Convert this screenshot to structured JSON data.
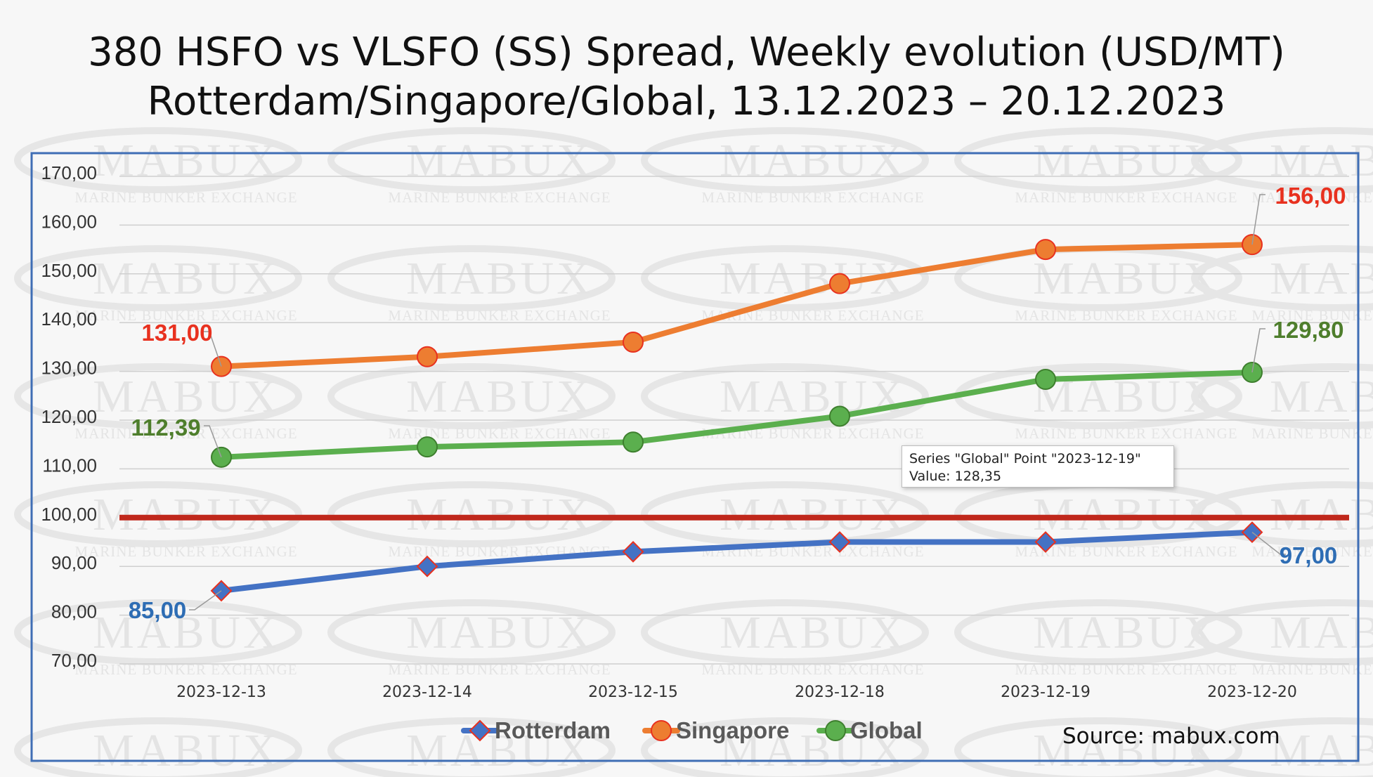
{
  "title_line1": "380 HSFO vs VLSFO (SS) Spread, Weekly evolution (USD/MT)",
  "title_line2": "Rotterdam/Singapore/Global, 13.12.2023 – 20.12.2023",
  "watermark": {
    "main": "MABUX",
    "sub": "MARINE BUNKER EXCHANGE"
  },
  "source": "Source: mabux.com",
  "tooltip": {
    "line1": "Series \"Global\" Point \"2023-12-19\"",
    "line2": "Value: 128,35"
  },
  "colors": {
    "rotterdam": "#4472C4",
    "singapore": "#ED7D31",
    "global": "#5BAF4E",
    "reference_line": "#C0281C",
    "frame": "#3F6EB5"
  },
  "chart_data": {
    "type": "line",
    "categories": [
      "2023-12-13",
      "2023-12-14",
      "2023-12-15",
      "2023-12-18",
      "2023-12-19",
      "2023-12-20"
    ],
    "series": [
      {
        "name": "Rotterdam",
        "values": [
          85.0,
          90.0,
          93.0,
          95.0,
          95.0,
          97.0
        ],
        "marker": "diamond",
        "color": "#4472C4"
      },
      {
        "name": "Singapore",
        "values": [
          131.0,
          133.0,
          136.0,
          148.0,
          155.0,
          156.0
        ],
        "marker": "circle",
        "color": "#ED7D31"
      },
      {
        "name": "Global",
        "values": [
          112.39,
          114.5,
          115.5,
          120.8,
          128.35,
          129.8
        ],
        "marker": "circle",
        "color": "#5BAF4E"
      }
    ],
    "data_labels": [
      {
        "series": "Singapore",
        "index": 0,
        "text": "131,00",
        "color": "#E8311F"
      },
      {
        "series": "Singapore",
        "index": 5,
        "text": "156,00",
        "color": "#E8311F"
      },
      {
        "series": "Global",
        "index": 0,
        "text": "112,39",
        "color": "#4E7E2C"
      },
      {
        "series": "Global",
        "index": 5,
        "text": "129,80",
        "color": "#4E7E2C"
      },
      {
        "series": "Rotterdam",
        "index": 0,
        "text": "85,00",
        "color": "#2E6DB4"
      },
      {
        "series": "Rotterdam",
        "index": 5,
        "text": "97,00",
        "color": "#2E6DB4"
      }
    ],
    "reference_line": {
      "value": 100.0,
      "color": "#C0281C"
    },
    "ylim": [
      70,
      170
    ],
    "yticks": [
      70,
      80,
      90,
      100,
      110,
      120,
      130,
      140,
      150,
      160,
      170
    ],
    "ytick_labels": [
      "70,00",
      "80,00",
      "90,00",
      "100,00",
      "110,00",
      "120,00",
      "130,00",
      "140,00",
      "150,00",
      "160,00",
      "170,00"
    ],
    "grid": true,
    "legend_position": "bottom-center",
    "xlabel": "",
    "ylabel": ""
  }
}
